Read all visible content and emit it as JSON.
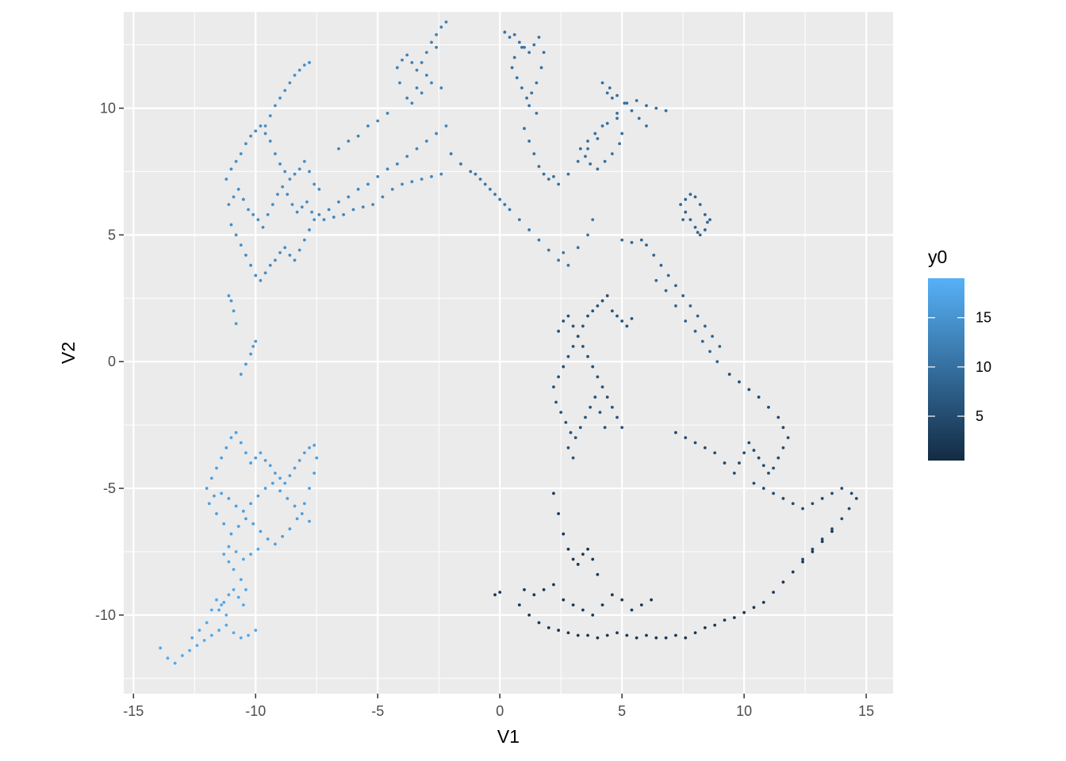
{
  "chart_data": {
    "type": "scatter",
    "title": "",
    "xlabel": "V1",
    "ylabel": "V2",
    "xlim": [
      -15.4,
      16.1
    ],
    "ylim": [
      -13.1,
      13.8
    ],
    "x_ticks": [
      -15,
      -10,
      -5,
      0,
      5,
      10,
      15
    ],
    "y_ticks": [
      -10,
      -5,
      0,
      5,
      10
    ],
    "x_tick_labels": [
      "-15",
      "-10",
      "-5",
      "0",
      "5",
      "10",
      "15"
    ],
    "y_tick_labels": [
      "-10",
      "-5",
      "0",
      "5",
      "10"
    ],
    "grid": true,
    "point_color_by": "y0",
    "color_scale": {
      "low": "#132B43",
      "high": "#56B1F7",
      "min": 0.5,
      "max": 19
    },
    "legend": {
      "title": "y0",
      "position": "right",
      "breaks": [
        5,
        10,
        15
      ],
      "labels": [
        "5",
        "10",
        "15"
      ]
    },
    "series": [
      {
        "x": [
          -13.9,
          -13.6,
          -13.3,
          -13.0,
          -12.7,
          -12.4,
          -12.1,
          -11.8,
          -11.5,
          -11.2,
          -10.9,
          -10.6,
          -10.3,
          -10.0,
          -11.2,
          -11.4,
          -11.6,
          -11.8,
          -12.0,
          -12.3,
          -12.6
        ],
        "y": [
          -11.3,
          -11.7,
          -11.9,
          -11.6,
          -11.4,
          -11.2,
          -11.0,
          -10.8,
          -10.6,
          -10.4,
          -10.7,
          -10.9,
          -10.8,
          -10.6,
          -10.0,
          -9.6,
          -9.4,
          -9.8,
          -10.3,
          -10.6,
          -10.9
        ],
        "y0": 18
      },
      {
        "x": [
          -11.5,
          -11.3,
          -11.1,
          -10.9,
          -10.7,
          -10.5,
          -10.4,
          -10.6,
          -10.9,
          -11.1,
          -11.3,
          -11.1,
          -10.8,
          -10.5,
          -10.2,
          -9.9
        ],
        "y": [
          -9.8,
          -9.5,
          -9.2,
          -9.0,
          -9.3,
          -9.6,
          -9.0,
          -8.6,
          -8.2,
          -7.9,
          -7.6,
          -7.3,
          -7.5,
          -7.8,
          -7.6,
          -7.4
        ],
        "y0": 17.5
      },
      {
        "x": [
          -12.0,
          -11.8,
          -11.6,
          -11.4,
          -11.2,
          -11.0,
          -10.8,
          -10.6,
          -10.4,
          -10.2,
          -10.0,
          -9.8,
          -9.6,
          -9.4,
          -9.2,
          -9.0,
          -8.8,
          -8.6,
          -8.4,
          -8.2,
          -8.0,
          -7.8,
          -7.6,
          -7.5,
          -7.6,
          -7.8,
          -8.0,
          -8.3,
          -8.6,
          -8.9,
          -9.2,
          -9.5,
          -9.8,
          -10.1,
          -10.4,
          -10.7,
          -11.0,
          -11.3,
          -11.6,
          -11.9,
          -11.7,
          -11.4,
          -11.1,
          -10.8,
          -10.5,
          -10.2,
          -9.9,
          -9.6,
          -9.3,
          -9.0,
          -8.7,
          -8.4,
          -8.1,
          -7.8
        ],
        "y": [
          -5.0,
          -4.6,
          -4.2,
          -3.8,
          -3.4,
          -3.0,
          -2.8,
          -3.2,
          -3.6,
          -4.0,
          -3.8,
          -3.6,
          -3.9,
          -4.1,
          -4.4,
          -4.6,
          -4.8,
          -4.5,
          -4.2,
          -3.9,
          -3.6,
          -3.4,
          -3.3,
          -3.8,
          -4.4,
          -5.0,
          -5.6,
          -6.2,
          -6.6,
          -6.9,
          -7.2,
          -7.0,
          -6.7,
          -6.4,
          -6.2,
          -6.5,
          -6.8,
          -6.4,
          -6.0,
          -5.6,
          -5.3,
          -5.2,
          -5.4,
          -5.7,
          -5.9,
          -5.6,
          -5.3,
          -5.0,
          -4.8,
          -5.1,
          -5.4,
          -5.7,
          -6.0,
          -6.3
        ],
        "y0": 16.5
      },
      {
        "x": [
          -10.6,
          -10.4,
          -10.2,
          -10.1,
          -10.0,
          -10.8,
          -10.9,
          -11.0,
          -11.1
        ],
        "y": [
          -0.5,
          -0.1,
          0.3,
          0.6,
          0.8,
          1.5,
          2.0,
          2.4,
          2.6
        ],
        "y0": 15.5
      },
      {
        "x": [
          -11.2,
          -11.0,
          -10.8,
          -10.6,
          -10.4,
          -10.2,
          -10.0,
          -9.8,
          -9.6,
          -9.4,
          -9.2,
          -9.0,
          -8.8,
          -8.6,
          -8.4,
          -8.2,
          -8.0,
          -7.8,
          -7.6,
          -7.4,
          -11.0,
          -10.8,
          -10.6,
          -10.4,
          -10.2,
          -10.0,
          -9.8,
          -9.6,
          -9.4,
          -9.2,
          -9.0,
          -8.8,
          -8.6,
          -8.4,
          -8.2,
          -8.0,
          -7.8,
          -7.6,
          -11.1,
          -10.9,
          -10.7,
          -10.5,
          -10.3,
          -10.1,
          -9.9,
          -9.7,
          -9.5,
          -9.3,
          -9.1,
          -8.9,
          -8.7,
          -8.5,
          -8.3,
          -8.1,
          -7.9,
          -7.7
        ],
        "y": [
          7.2,
          7.6,
          7.9,
          8.2,
          8.6,
          8.9,
          9.1,
          9.3,
          9.0,
          8.7,
          8.2,
          7.8,
          7.5,
          7.2,
          7.4,
          7.6,
          7.9,
          7.5,
          7.0,
          6.8,
          5.4,
          5.0,
          4.6,
          4.2,
          3.8,
          3.4,
          3.2,
          3.5,
          3.8,
          4.0,
          4.3,
          4.5,
          4.2,
          4.0,
          4.4,
          4.8,
          5.2,
          5.6,
          6.2,
          6.5,
          6.8,
          6.4,
          6.0,
          5.8,
          5.6,
          5.3,
          5.8,
          6.2,
          6.6,
          6.9,
          6.6,
          6.2,
          5.9,
          6.1,
          6.3,
          5.9
        ],
        "y0": 14
      },
      {
        "x": [
          -9.6,
          -9.4,
          -9.2,
          -9.0,
          -8.8,
          -8.6,
          -8.4,
          -8.2,
          -8.0,
          -7.8
        ],
        "y": [
          9.3,
          9.7,
          10.1,
          10.4,
          10.7,
          11.0,
          11.3,
          11.5,
          11.7,
          11.8
        ],
        "y0": 14.5
      },
      {
        "x": [
          -7.4,
          -7.0,
          -6.6,
          -6.2,
          -5.8,
          -5.4,
          -5.0,
          -4.6,
          -4.2,
          -3.8,
          -3.4,
          -3.0,
          -2.6,
          -2.2,
          -7.2,
          -6.8,
          -6.4,
          -6.0,
          -5.6,
          -5.2,
          -4.8,
          -4.4,
          -4.0,
          -3.6,
          -3.2,
          -2.8,
          -2.4,
          -6.6,
          -6.2,
          -5.8,
          -5.4,
          -5.0,
          -4.6
        ],
        "y": [
          5.8,
          6.0,
          6.3,
          6.5,
          6.8,
          7.0,
          7.3,
          7.6,
          7.8,
          8.1,
          8.4,
          8.7,
          9.0,
          9.3,
          5.6,
          5.7,
          5.8,
          6.0,
          6.1,
          6.2,
          6.5,
          6.8,
          7.0,
          7.1,
          7.2,
          7.3,
          7.4,
          8.4,
          8.7,
          8.9,
          9.3,
          9.5,
          9.8
        ],
        "y0": 13
      },
      {
        "x": [
          -4.2,
          -4.0,
          -3.8,
          -3.6,
          -3.4,
          -3.2,
          -3.0,
          -2.8,
          -2.6,
          -2.4,
          -2.2,
          -2.6,
          -3.0,
          -3.4,
          -3.8,
          -4.1,
          -3.6,
          -3.2,
          -2.8,
          -2.4
        ],
        "y": [
          11.6,
          11.9,
          12.1,
          11.8,
          11.5,
          11.8,
          12.2,
          12.6,
          12.9,
          13.2,
          13.4,
          12.4,
          11.3,
          10.8,
          10.4,
          11.0,
          10.2,
          10.6,
          11.0,
          10.8
        ],
        "y0": 12.5
      },
      {
        "x": [
          -2.0,
          -1.6,
          -1.2,
          -0.8,
          -0.4,
          0.0,
          0.4,
          0.8,
          1.2,
          1.6,
          2.0,
          2.4,
          -1.0,
          -0.6,
          -0.2,
          0.2,
          2.6,
          2.8,
          3.2,
          3.6,
          3.8
        ],
        "y": [
          8.2,
          7.8,
          7.5,
          7.2,
          6.8,
          6.4,
          6.0,
          5.6,
          5.2,
          4.8,
          4.4,
          4.0,
          7.4,
          7.0,
          6.6,
          6.2,
          4.3,
          3.8,
          4.5,
          5.0,
          5.6
        ],
        "y0": 11
      },
      {
        "x": [
          0.2,
          0.4,
          0.6,
          0.8,
          1.0,
          1.2,
          1.4,
          1.6,
          1.8,
          1.7,
          1.5,
          1.3,
          1.1,
          0.9,
          0.7,
          0.5,
          0.6,
          0.9,
          1.2,
          1.5
        ],
        "y": [
          13.0,
          12.8,
          12.9,
          12.6,
          12.4,
          12.2,
          12.5,
          12.8,
          12.2,
          11.6,
          11.0,
          10.6,
          10.4,
          10.8,
          11.2,
          11.6,
          12.0,
          12.4,
          10.1,
          9.8
        ],
        "y0": 10.5
      },
      {
        "x": [
          1.0,
          1.2,
          1.4,
          1.6,
          1.8,
          2.0,
          2.2,
          2.4,
          2.8,
          3.2,
          3.6,
          4.0,
          4.4,
          4.8,
          5.2,
          5.6,
          6.0,
          6.4,
          6.8,
          4.2,
          4.4,
          4.6,
          4.8,
          5.0,
          4.9,
          4.6,
          4.3,
          4.0,
          3.7,
          3.5,
          3.3,
          3.6,
          3.9,
          4.2,
          4.5,
          4.8,
          5.1,
          5.4,
          5.7,
          6.0
        ],
        "y": [
          9.2,
          8.7,
          8.2,
          7.7,
          7.4,
          7.2,
          7.3,
          7.0,
          7.4,
          7.9,
          8.4,
          8.8,
          9.4,
          9.8,
          10.2,
          10.3,
          10.1,
          10.0,
          9.9,
          11.0,
          10.6,
          10.4,
          9.6,
          9.0,
          8.6,
          8.2,
          7.9,
          7.6,
          7.8,
          8.1,
          8.4,
          8.7,
          9.0,
          9.3,
          10.8,
          10.5,
          10.2,
          9.9,
          9.6,
          9.3
        ],
        "y0": 10
      },
      {
        "x": [
          7.4,
          7.6,
          7.8,
          8.0,
          8.2,
          8.4,
          8.6,
          8.4,
          8.2,
          8.0,
          7.8,
          7.6,
          7.5,
          8.1,
          8.5,
          5.0,
          5.4,
          5.8,
          6.0,
          6.3,
          6.6,
          6.9,
          7.2,
          7.5,
          7.8,
          8.1,
          8.4,
          8.7,
          9.0,
          6.4,
          6.8,
          7.2,
          7.6,
          8.0,
          8.3,
          8.6,
          8.9
        ],
        "y": [
          6.2,
          6.4,
          6.6,
          6.5,
          6.2,
          5.8,
          5.6,
          5.2,
          5.0,
          5.3,
          5.6,
          5.9,
          5.6,
          5.1,
          5.5,
          4.8,
          4.7,
          4.8,
          4.6,
          4.2,
          3.8,
          3.4,
          3.0,
          2.6,
          2.2,
          1.8,
          1.4,
          1.0,
          0.6,
          3.2,
          2.8,
          2.2,
          1.6,
          1.2,
          0.8,
          0.4,
          0.0
        ],
        "y0": 8.5
      },
      {
        "x": [
          2.2,
          2.4,
          2.6,
          2.8,
          3.0,
          3.2,
          3.4,
          3.6,
          3.8,
          4.0,
          4.2,
          4.4,
          4.6,
          4.8,
          5.0,
          5.2,
          5.4,
          2.3,
          2.5,
          2.7,
          2.9,
          3.1,
          3.3,
          3.5,
          3.7,
          3.9,
          4.1,
          4.3,
          2.4,
          2.6,
          2.8,
          3.0,
          3.2,
          3.4,
          3.6,
          3.8,
          4.0,
          4.2,
          4.4,
          4.6,
          4.8,
          5.0,
          2.8,
          3.0
        ],
        "y": [
          -1.0,
          -0.6,
          -0.2,
          0.2,
          0.6,
          1.0,
          1.4,
          1.8,
          2.0,
          2.2,
          2.4,
          2.6,
          2.0,
          1.8,
          1.6,
          1.4,
          1.7,
          -1.6,
          -2.0,
          -2.4,
          -2.8,
          -3.0,
          -2.6,
          -2.2,
          -1.8,
          -1.4,
          -2.0,
          -2.6,
          1.2,
          1.6,
          1.8,
          1.4,
          1.0,
          0.6,
          0.2,
          -0.2,
          -0.6,
          -1.0,
          -1.4,
          -1.8,
          -2.2,
          -2.6,
          -3.4,
          -3.8
        ],
        "y0": 6
      },
      {
        "x": [
          9.4,
          9.8,
          10.2,
          10.6,
          11.0,
          11.4,
          11.6,
          11.8,
          11.6,
          11.4,
          11.2,
          11.0,
          10.8,
          10.6,
          10.4,
          10.2,
          10.0,
          9.8,
          9.6,
          9.2,
          8.8,
          8.4,
          8.0,
          7.6,
          7.2,
          10.4,
          10.8,
          11.2,
          11.6,
          12.0,
          12.4,
          12.8,
          13.2,
          13.6,
          14.0,
          14.4,
          14.6,
          14.3,
          14.0,
          13.6,
          13.2,
          12.8,
          12.4
        ],
        "y": [
          -0.5,
          -0.8,
          -1.1,
          -1.4,
          -1.8,
          -2.2,
          -2.6,
          -3.0,
          -3.4,
          -3.8,
          -4.2,
          -4.4,
          -4.1,
          -3.8,
          -3.5,
          -3.2,
          -3.6,
          -4.0,
          -4.4,
          -4.0,
          -3.6,
          -3.4,
          -3.2,
          -3.0,
          -2.8,
          -4.8,
          -5.0,
          -5.2,
          -5.4,
          -5.6,
          -5.8,
          -5.6,
          -5.4,
          -5.2,
          -5.0,
          -5.2,
          -5.4,
          -5.8,
          -6.2,
          -6.6,
          -7.0,
          -7.4,
          -7.8
        ],
        "y0": 5
      },
      {
        "x": [
          0.8,
          1.2,
          1.6,
          2.0,
          2.4,
          2.8,
          3.2,
          3.6,
          4.0,
          4.4,
          4.8,
          5.2,
          5.6,
          6.0,
          6.4,
          6.8,
          7.2,
          7.6,
          8.0,
          8.4,
          8.8,
          9.2,
          9.6,
          10.0,
          10.4,
          10.8,
          11.2,
          11.6,
          12.0,
          12.4,
          12.8,
          13.2,
          13.6,
          1.0,
          1.4,
          1.8,
          2.2,
          2.6,
          3.0,
          3.4,
          3.8,
          4.2,
          4.6,
          5.0,
          5.4,
          5.8,
          6.2,
          2.2,
          2.4,
          2.6,
          2.8,
          3.0,
          3.2,
          3.4,
          3.6,
          3.8,
          4.0,
          -0.2,
          0.0
        ],
        "y": [
          -9.6,
          -10.0,
          -10.3,
          -10.5,
          -10.6,
          -10.7,
          -10.8,
          -10.8,
          -10.9,
          -10.8,
          -10.7,
          -10.8,
          -10.9,
          -10.8,
          -10.9,
          -10.9,
          -10.8,
          -10.9,
          -10.7,
          -10.5,
          -10.4,
          -10.2,
          -10.1,
          -9.9,
          -9.7,
          -9.5,
          -9.1,
          -8.7,
          -8.3,
          -7.9,
          -7.5,
          -7.1,
          -6.7,
          -9.0,
          -9.2,
          -9.0,
          -8.8,
          -9.4,
          -9.6,
          -9.8,
          -10.0,
          -9.6,
          -9.2,
          -9.4,
          -9.8,
          -9.6,
          -9.4,
          -5.2,
          -6.0,
          -6.8,
          -7.4,
          -7.8,
          -8.0,
          -7.6,
          -7.4,
          -7.8,
          -8.4,
          -9.2,
          -9.1
        ],
        "y0": 2.5
      }
    ]
  }
}
